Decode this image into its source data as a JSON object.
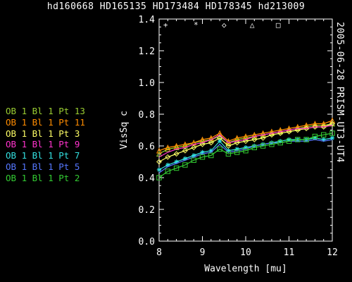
{
  "title": "hd160668 HD165135 HD173484 HD178345 hd213009",
  "side_label": "2005-06-28 PRISM-UT3-UT4",
  "chart_data": {
    "type": "line",
    "xlabel": "Wavelength [mu]",
    "ylabel": "VisSq c",
    "xlim": [
      8,
      12
    ],
    "ylim": [
      0,
      1.4
    ],
    "xticks": [
      "8",
      "9",
      "10",
      "11",
      "12"
    ],
    "yticks": [
      "0.0",
      "0.2",
      "0.4",
      "0.6",
      "0.8",
      "1.0",
      "1.2",
      "1.4"
    ],
    "grid": false,
    "legend_position": "left",
    "x": [
      8.0,
      8.2,
      8.4,
      8.6,
      8.8,
      9.0,
      9.2,
      9.4,
      9.6,
      9.8,
      10.0,
      10.2,
      10.4,
      10.6,
      10.8,
      11.0,
      11.2,
      11.4,
      11.6,
      11.8,
      12.0
    ],
    "series": [
      {
        "name": "OB 1 Bl 1 Pt 13",
        "color": "#9acd32",
        "marker": "triangle",
        "values": [
          0.55,
          0.58,
          0.59,
          0.6,
          0.62,
          0.63,
          0.64,
          0.66,
          0.62,
          0.64,
          0.65,
          0.66,
          0.67,
          0.68,
          0.69,
          0.7,
          0.71,
          0.72,
          0.73,
          0.73,
          0.74
        ]
      },
      {
        "name": "OB 1 Bl 1 Pt 11",
        "color": "#ff8c00",
        "marker": "triangle",
        "values": [
          0.57,
          0.59,
          0.6,
          0.61,
          0.62,
          0.64,
          0.65,
          0.68,
          0.63,
          0.65,
          0.66,
          0.67,
          0.68,
          0.69,
          0.7,
          0.71,
          0.72,
          0.73,
          0.74,
          0.74,
          0.76
        ]
      },
      {
        "name": "OB 1 Bl 1 Pt 3",
        "color": "#ffff66",
        "marker": "diamond",
        "values": [
          0.5,
          0.53,
          0.55,
          0.57,
          0.59,
          0.61,
          0.62,
          0.65,
          0.6,
          0.62,
          0.63,
          0.64,
          0.65,
          0.67,
          0.68,
          0.69,
          0.7,
          0.71,
          0.72,
          0.72,
          0.74
        ]
      },
      {
        "name": "OB 1 Bl 1 Pt 9",
        "color": "#ff33cc",
        "marker": "none",
        "values": [
          0.53,
          0.56,
          0.58,
          0.59,
          0.61,
          0.62,
          0.64,
          0.67,
          0.62,
          0.63,
          0.64,
          0.66,
          0.67,
          0.68,
          0.69,
          0.7,
          0.71,
          0.71,
          0.72,
          0.72,
          0.73
        ]
      },
      {
        "name": "OB 1 Bl 1 Pt 7",
        "color": "#33e0e0",
        "marker": "asterisk",
        "values": [
          0.45,
          0.48,
          0.5,
          0.52,
          0.54,
          0.56,
          0.57,
          0.63,
          0.57,
          0.58,
          0.59,
          0.6,
          0.61,
          0.62,
          0.63,
          0.64,
          0.64,
          0.64,
          0.65,
          0.64,
          0.65
        ]
      },
      {
        "name": "OB 1 Bl 1 Pt 5",
        "color": "#5577ff",
        "marker": "none",
        "values": [
          0.43,
          0.47,
          0.49,
          0.51,
          0.53,
          0.55,
          0.56,
          0.61,
          0.56,
          0.57,
          0.58,
          0.6,
          0.61,
          0.62,
          0.62,
          0.63,
          0.63,
          0.63,
          0.64,
          0.63,
          0.64
        ]
      },
      {
        "name": "OB 1 Bl 1 Pt 2",
        "color": "#33cc33",
        "marker": "square",
        "values": [
          0.4,
          0.44,
          0.46,
          0.48,
          0.51,
          0.53,
          0.54,
          0.58,
          0.55,
          0.56,
          0.57,
          0.59,
          0.6,
          0.61,
          0.62,
          0.63,
          0.64,
          0.64,
          0.66,
          0.67,
          0.68
        ]
      }
    ],
    "top_symbols": [
      "+",
      "*",
      "◇",
      "△",
      "□"
    ],
    "top_symbols_x": [
      8.15,
      8.85,
      9.5,
      10.15,
      10.75
    ],
    "top_symbols_y": 1.37
  }
}
